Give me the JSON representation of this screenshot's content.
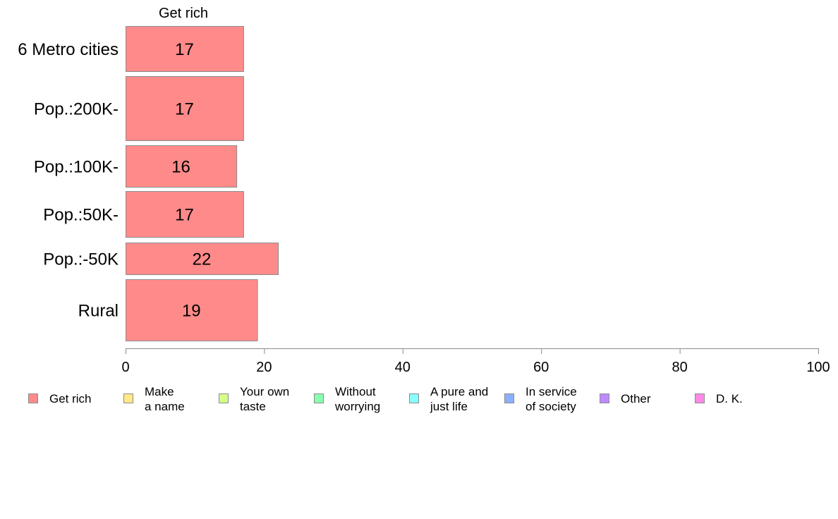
{
  "chart_data": {
    "type": "bar",
    "orientation": "horizontal",
    "panel_title": "Get rich",
    "categories": [
      "6 Metro cities",
      "Pop.:200K-",
      "Pop.:100K-",
      "Pop.:50K-",
      "Pop.:-50K",
      "Rural"
    ],
    "series": [
      {
        "name": "Get rich",
        "values": [
          17,
          17,
          16,
          17,
          22,
          19
        ],
        "color": "#ff8a8a"
      }
    ],
    "xlim": [
      0,
      100
    ],
    "xticks": [
      0,
      20,
      40,
      60,
      80,
      100
    ],
    "grid": false,
    "legend_position": "bottom",
    "legend": [
      {
        "lines": [
          "Get rich"
        ],
        "color": "#ff8a8a"
      },
      {
        "lines": [
          "Make",
          "a name"
        ],
        "color": "#ffe98a"
      },
      {
        "lines": [
          "Your own",
          "taste"
        ],
        "color": "#d4ff8a"
      },
      {
        "lines": [
          "Without",
          "worrying"
        ],
        "color": "#8affb1"
      },
      {
        "lines": [
          "A pure and",
          "just life"
        ],
        "color": "#8affff"
      },
      {
        "lines": [
          "In service",
          "of society"
        ],
        "color": "#8ab1ff"
      },
      {
        "lines": [
          "Other"
        ],
        "color": "#c08aff"
      },
      {
        "lines": [
          "D. K."
        ],
        "color": "#ff8ae5"
      }
    ]
  }
}
